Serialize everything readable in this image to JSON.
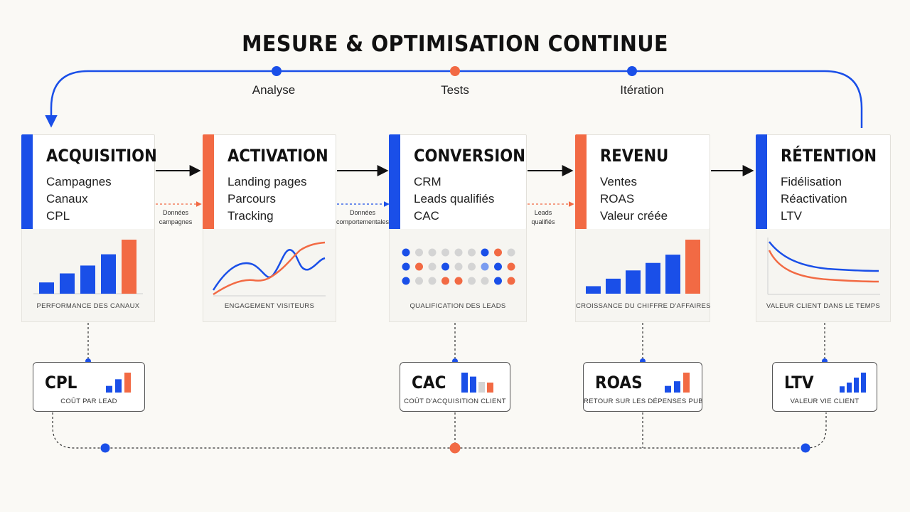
{
  "title": "MESURE & OPTIMISATION CONTINUE",
  "loop_labels": [
    "Analyse",
    "Tests",
    "Itération"
  ],
  "colors": {
    "blue": "#1a4fe8",
    "orange": "#f26a44",
    "grey": "#d4d4d4",
    "light_blue": "#7a9cf0"
  },
  "stages": [
    {
      "title": "ACQUISITION",
      "items": [
        "Campagnes",
        "Canaux",
        "CPL"
      ],
      "accent": "blue",
      "panel_label": "PERFORMANCE DES CANAUX"
    },
    {
      "title": "ACTIVATION",
      "items": [
        "Landing pages",
        "Parcours",
        "Tracking"
      ],
      "accent": "orange",
      "panel_label": "ENGAGEMENT VISITEURS"
    },
    {
      "title": "CONVERSION",
      "items": [
        "CRM",
        "Leads qualifiés",
        "CAC"
      ],
      "accent": "blue",
      "panel_label": "QUALIFICATION DES LEADS"
    },
    {
      "title": "REVENU",
      "items": [
        "Ventes",
        "ROAS",
        "Valeur créée"
      ],
      "accent": "orange",
      "panel_label": "CROISSANCE DU CHIFFRE D'AFFAIRES"
    },
    {
      "title": "RÉTENTION",
      "items": [
        "Fidélisation",
        "Réactivation",
        "LTV"
      ],
      "accent": "blue",
      "panel_label": "VALEUR CLIENT DANS LE TEMPS"
    }
  ],
  "flow_labels": [
    {
      "line1": "Données",
      "line2": "campagnes"
    },
    {
      "line1": "Données",
      "line2": "comportementales"
    },
    {
      "line1": "Leads",
      "line2": "qualifiés"
    }
  ],
  "kpis": [
    {
      "name": "CPL",
      "desc": "COÛT PAR LEAD"
    },
    {
      "name": "CAC",
      "desc": "COÛT D'ACQUISITION CLIENT"
    },
    {
      "name": "ROAS",
      "desc": "RETOUR SUR LES DÉPENSES PUB"
    },
    {
      "name": "LTV",
      "desc": "VALEUR VIE CLIENT"
    }
  ],
  "mini_charts": {
    "channel_bars": [
      1,
      1.8,
      2.5,
      3.5,
      4.8
    ],
    "revenue_bars": [
      1,
      2,
      3.1,
      4.1,
      5.2,
      7.2
    ],
    "lead_dots": [
      [
        "blue",
        "grey",
        "grey",
        "grey",
        "grey",
        "grey",
        "blue",
        "orange",
        "grey"
      ],
      [
        "blue",
        "orange",
        "grey",
        "blue",
        "grey",
        "grey",
        "light_blue",
        "blue",
        "orange"
      ],
      [
        "blue",
        "grey",
        "grey",
        "orange",
        "orange",
        "grey",
        "grey",
        "blue",
        "orange"
      ]
    ],
    "cpl_bars": [
      1,
      2,
      3
    ],
    "cac_bars": [
      3,
      2.4,
      1.6,
      1.5
    ],
    "roas_bars": [
      1,
      1.7,
      3
    ],
    "ltv_bars": [
      1,
      1.6,
      2.4,
      3.2
    ]
  }
}
